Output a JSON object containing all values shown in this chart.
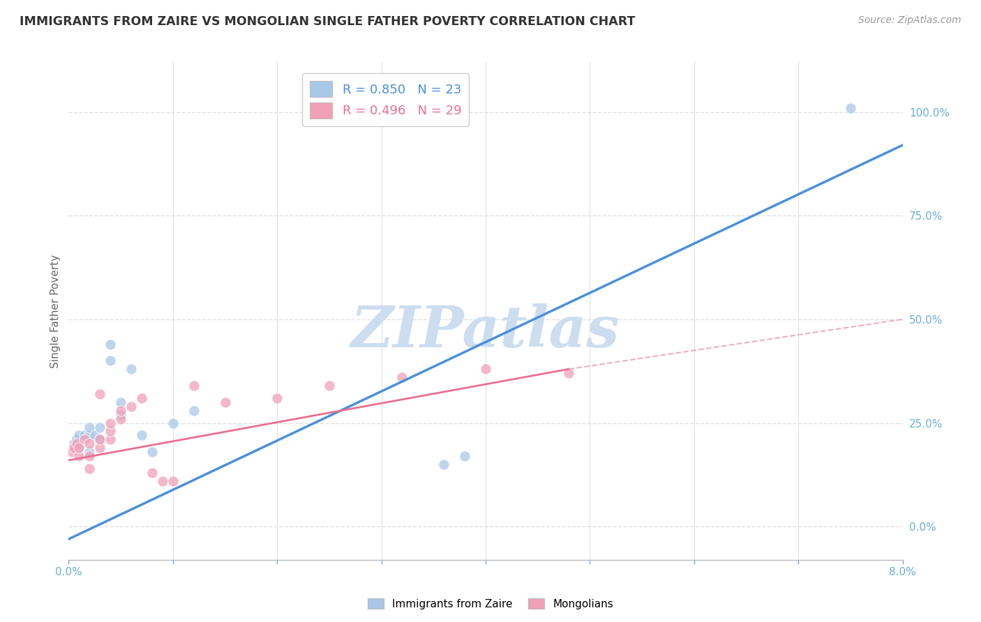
{
  "title": "IMMIGRANTS FROM ZAIRE VS MONGOLIAN SINGLE FATHER POVERTY CORRELATION CHART",
  "source": "Source: ZipAtlas.com",
  "ylabel": "Single Father Poverty",
  "xlim": [
    0.0,
    0.08
  ],
  "ylim": [
    -0.08,
    1.12
  ],
  "xticks": [
    0.0,
    0.01,
    0.02,
    0.03,
    0.04,
    0.05,
    0.06,
    0.07,
    0.08
  ],
  "xticklabels": [
    "0.0%",
    "",
    "",
    "",
    "",
    "",
    "",
    "",
    "8.0%"
  ],
  "yticks_right": [
    0.0,
    0.25,
    0.5,
    0.75,
    1.0
  ],
  "yticklabels_right": [
    "0.0%",
    "25.0%",
    "50.0%",
    "75.0%",
    "100.0%"
  ],
  "blue_color": "#a8c8e8",
  "pink_color": "#f0a0b8",
  "blue_line_color": "#4a90d9",
  "pink_line_color": "#e87090",
  "pink_dash_color": "#e8b0c0",
  "blue_scatter_x": [
    0.0005,
    0.0008,
    0.001,
    0.001,
    0.0015,
    0.002,
    0.002,
    0.002,
    0.0025,
    0.003,
    0.003,
    0.004,
    0.004,
    0.005,
    0.005,
    0.006,
    0.007,
    0.008,
    0.01,
    0.012,
    0.036,
    0.038,
    0.075
  ],
  "blue_scatter_y": [
    0.2,
    0.21,
    0.19,
    0.22,
    0.22,
    0.18,
    0.22,
    0.24,
    0.22,
    0.21,
    0.24,
    0.4,
    0.44,
    0.27,
    0.3,
    0.38,
    0.22,
    0.18,
    0.25,
    0.28,
    0.15,
    0.17,
    1.01
  ],
  "pink_scatter_x": [
    0.0003,
    0.0005,
    0.0008,
    0.001,
    0.001,
    0.0015,
    0.002,
    0.002,
    0.002,
    0.003,
    0.003,
    0.003,
    0.004,
    0.004,
    0.004,
    0.005,
    0.005,
    0.006,
    0.007,
    0.008,
    0.009,
    0.01,
    0.012,
    0.015,
    0.02,
    0.025,
    0.032,
    0.04,
    0.048
  ],
  "pink_scatter_y": [
    0.18,
    0.19,
    0.2,
    0.17,
    0.19,
    0.21,
    0.14,
    0.17,
    0.2,
    0.19,
    0.21,
    0.32,
    0.21,
    0.23,
    0.25,
    0.26,
    0.28,
    0.29,
    0.31,
    0.13,
    0.11,
    0.11,
    0.34,
    0.3,
    0.31,
    0.34,
    0.36,
    0.38,
    0.37
  ],
  "blue_line_x": [
    0.0,
    0.08
  ],
  "blue_line_y": [
    -0.03,
    0.92
  ],
  "pink_solid_line_x": [
    0.0,
    0.048
  ],
  "pink_solid_line_y": [
    0.16,
    0.38
  ],
  "pink_dash_line_x": [
    0.048,
    0.08
  ],
  "pink_dash_line_y": [
    0.38,
    0.5
  ],
  "watermark": "ZIPatlas",
  "watermark_color": "#ccddf0",
  "background_color": "#ffffff",
  "grid_color": "#e0e0e0",
  "title_color": "#333333",
  "axis_label_color": "#666666",
  "tick_color": "#6baed6",
  "legend_blue_label": "R = 0.850   N = 23",
  "legend_pink_label": "R = 0.496   N = 29"
}
